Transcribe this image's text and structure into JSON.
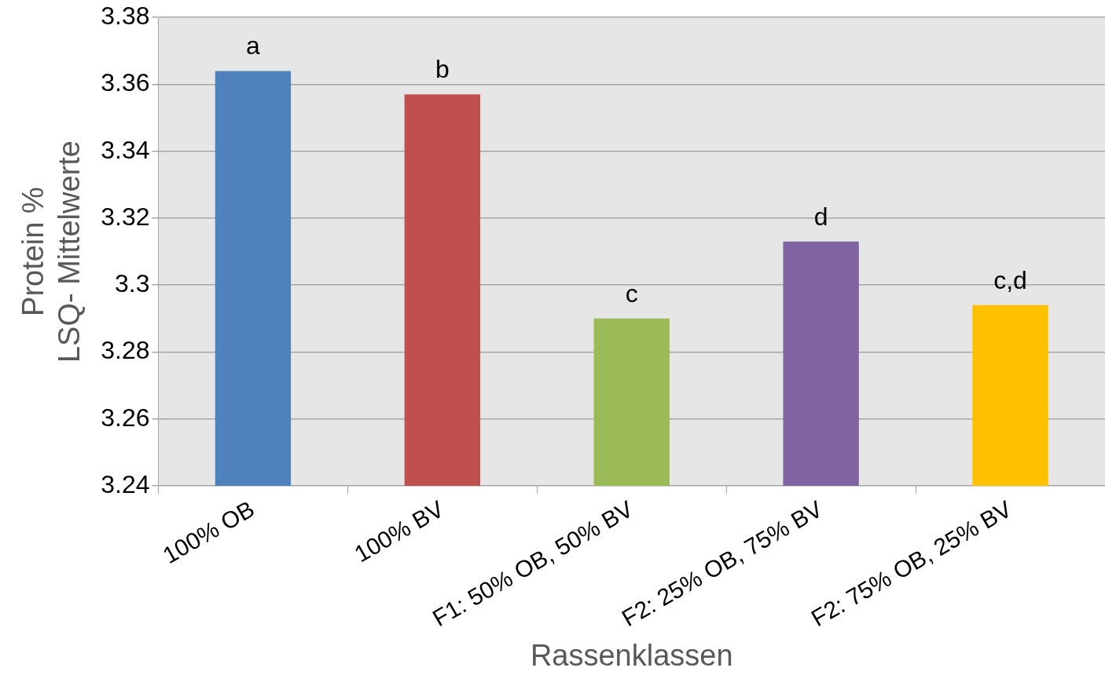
{
  "chart_data": {
    "type": "bar",
    "xlabel": "Rassenklassen",
    "ylabel": "Protein %\nLSQ- Mittelwerte",
    "categories": [
      "100% OB",
      "100% BV",
      "F1: 50% OB, 50% BV",
      "F2: 25% OB, 75% BV",
      "F2: 75% OB, 25% BV"
    ],
    "values": [
      3.364,
      3.357,
      3.29,
      3.313,
      3.294
    ],
    "colors": [
      "#4f81bd",
      "#c0504d",
      "#9bbb59",
      "#8064a2",
      "#ffc000"
    ],
    "ylim": [
      3.24,
      3.38
    ],
    "yticks": [
      3.24,
      3.26,
      3.28,
      3.3,
      3.32,
      3.34,
      3.36,
      3.38
    ],
    "grid": "y",
    "legend": false,
    "annotations": [
      {
        "text": "a",
        "x": "100% OB",
        "y": 3.364
      },
      {
        "text": "b",
        "x": "100% BV",
        "y": 3.357
      },
      {
        "text": "c",
        "x": "F1: 50% OB, 50% BV",
        "y": 3.29
      },
      {
        "text": "d",
        "x": "F2: 25% OB, 75% BV",
        "y": 3.313
      },
      {
        "text": "c,d",
        "x": "F2: 75% OB, 25% BV",
        "y": 3.294
      }
    ]
  }
}
